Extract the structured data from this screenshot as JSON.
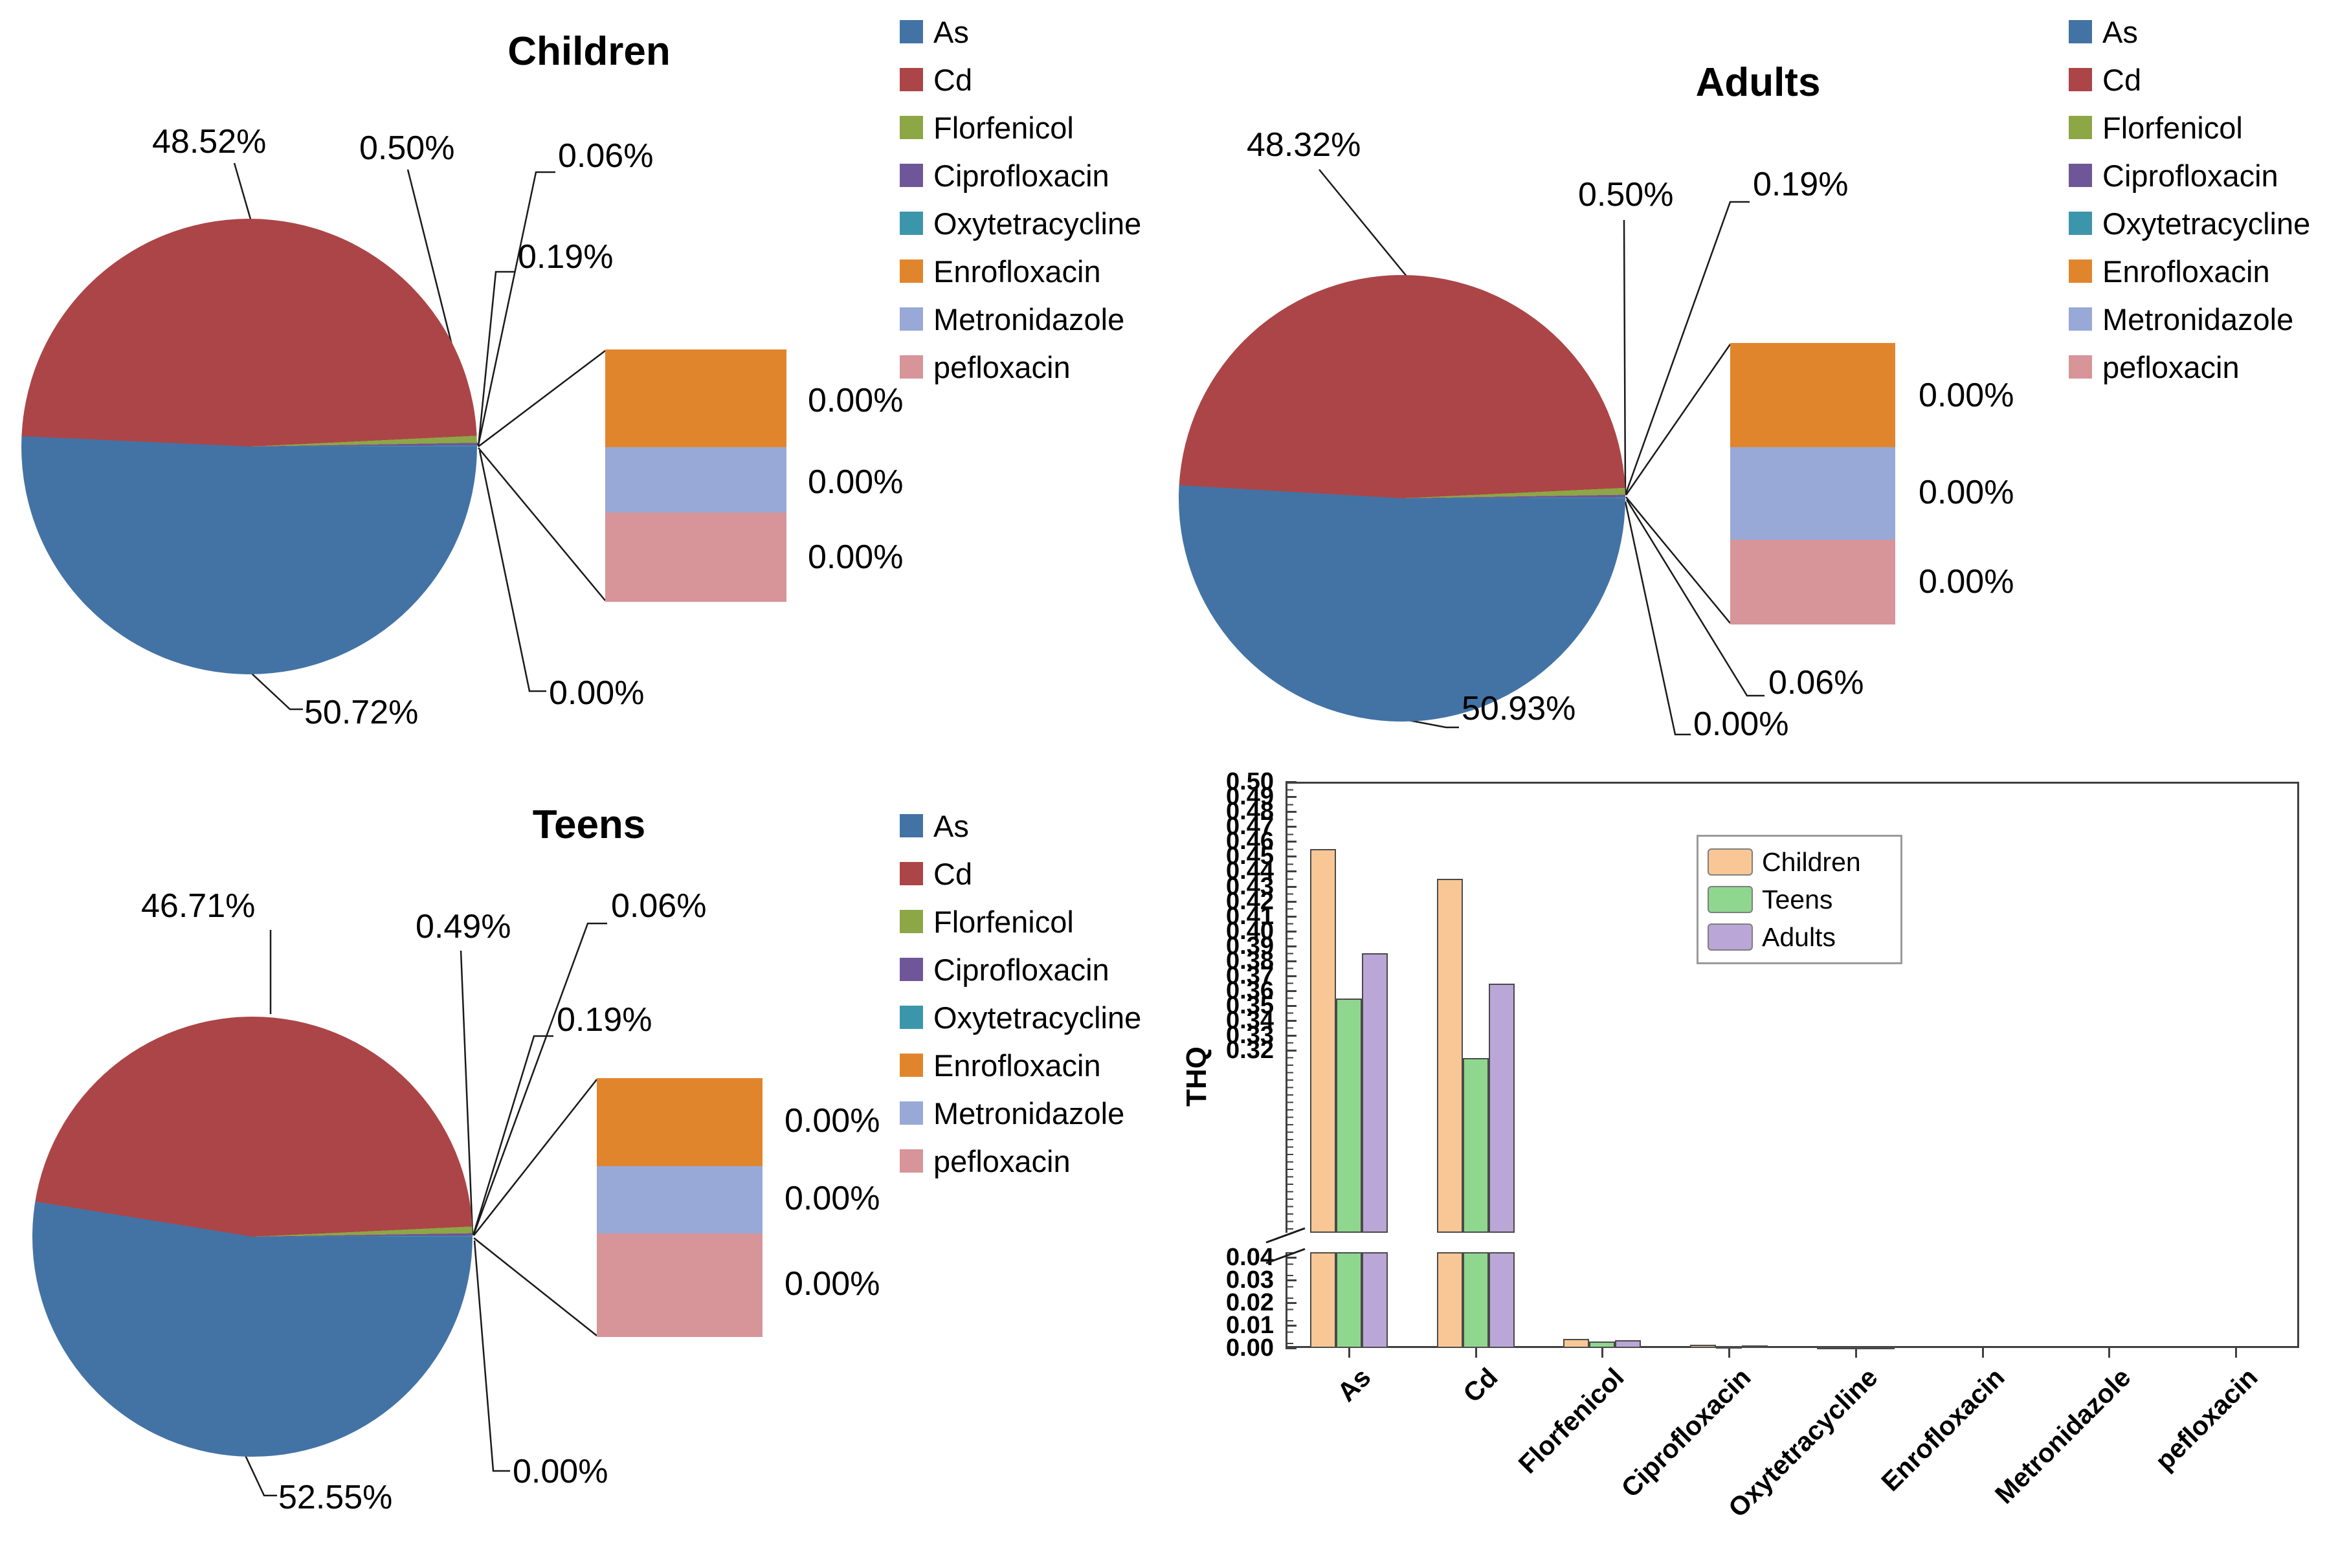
{
  "pie_legend": {
    "labels": [
      "As",
      "Cd",
      "Florfenicol",
      "Ciprofloxacin",
      "Oxytetracycline",
      "Enrofloxacin",
      "Metronidazole",
      "pefloxacin"
    ]
  },
  "pie_colors": {
    "As": "#4373A5",
    "Cd": "#AC4547",
    "Florfenicol": "#8DA646",
    "Ciprofloxacin": "#6F5699",
    "Oxytetracycline": "#3C96AB",
    "Enrofloxacin": "#E1852D",
    "Metronidazole": "#98A9D8",
    "pefloxacin": "#D79499"
  },
  "bar_colors": {
    "Children": "#F9C795",
    "Teens": "#8FD78F",
    "Adults": "#BAA6D7"
  },
  "chart_data": [
    {
      "type": "pie",
      "title": "Children",
      "variant": "bar-of-pie",
      "categories": [
        "As",
        "Cd",
        "Florfenicol",
        "Ciprofloxacin",
        "Oxytetracycline",
        "Enrofloxacin",
        "Metronidazole",
        "pefloxacin"
      ],
      "values": [
        50.72,
        48.52,
        0.5,
        0.19,
        0.06,
        0.0,
        0.0,
        0.0
      ],
      "labels": {
        "As": "50.72%",
        "Cd": "48.52%",
        "Florfenicol": "0.50%",
        "Ciprofloxacin": "0.19%",
        "Oxytetracycline": "0.06%",
        "Enrofloxacin": "0.00%",
        "Metronidazole": "0.00%",
        "pefloxacin": "0.00%",
        "other": "0.00%"
      },
      "breakout": [
        "Enrofloxacin",
        "Metronidazole",
        "pefloxacin"
      ]
    },
    {
      "type": "pie",
      "title": "Adults",
      "variant": "bar-of-pie",
      "categories": [
        "As",
        "Cd",
        "Florfenicol",
        "Ciprofloxacin",
        "Oxytetracycline",
        "Enrofloxacin",
        "Metronidazole",
        "pefloxacin"
      ],
      "values": [
        50.93,
        48.32,
        0.5,
        0.19,
        0.06,
        0.0,
        0.0,
        0.0
      ],
      "labels": {
        "As": "50.93%",
        "Cd": "48.32%",
        "Florfenicol": "0.50%",
        "Ciprofloxacin": "0.19%",
        "Oxytetracycline": "0.06%",
        "Enrofloxacin": "0.00%",
        "Metronidazole": "0.00%",
        "pefloxacin": "0.00%",
        "other": "0.00%"
      },
      "breakout": [
        "Enrofloxacin",
        "Metronidazole",
        "pefloxacin"
      ]
    },
    {
      "type": "pie",
      "title": "Teens",
      "variant": "bar-of-pie",
      "categories": [
        "As",
        "Cd",
        "Florfenicol",
        "Ciprofloxacin",
        "Oxytetracycline",
        "Enrofloxacin",
        "Metronidazole",
        "pefloxacin"
      ],
      "values": [
        52.55,
        46.71,
        0.49,
        0.19,
        0.06,
        0.0,
        0.0,
        0.0
      ],
      "labels": {
        "As": "52.55%",
        "Cd": "46.71%",
        "Florfenicol": "0.49%",
        "Ciprofloxacin": "0.19%",
        "Oxytetracycline": "0.06%",
        "Enrofloxacin": "0.00%",
        "Metronidazole": "0.00%",
        "pefloxacin": "0.00%",
        "other": "0.00%"
      },
      "breakout": [
        "Enrofloxacin",
        "Metronidazole",
        "pefloxacin"
      ]
    },
    {
      "type": "bar",
      "title": "",
      "xlabel": "",
      "ylabel": "THQ",
      "categories": [
        "As",
        "Cd",
        "Florfenicol",
        "Ciprofloxacin",
        "Oxytetracycline",
        "Enrofloxacin",
        "Metronidazole",
        "pefloxacin"
      ],
      "series": [
        {
          "name": "Children",
          "values": [
            0.455,
            0.435,
            0.004,
            0.0015,
            0.0005,
            0.0001,
            0.0001,
            0.0001
          ]
        },
        {
          "name": "Teens",
          "values": [
            0.355,
            0.315,
            0.003,
            0.001,
            0.0003,
            0.0001,
            0.0001,
            0.0001
          ]
        },
        {
          "name": "Adults",
          "values": [
            0.385,
            0.365,
            0.0035,
            0.0012,
            0.0004,
            0.0001,
            0.0001,
            0.0001
          ]
        }
      ],
      "axis_break": {
        "lower_max": 0.045,
        "upper_min": 0.302
      },
      "yticks_upper": [
        "0.50",
        "0.49",
        "0.48",
        "0.47",
        "0.46",
        "0.45",
        "0.44",
        "0.43",
        "0.42",
        "0.41",
        "0.40",
        "0.39",
        "0.38",
        "0.37",
        "0.36",
        "0.35",
        "0.34",
        "0.33",
        "0.32"
      ],
      "yticks_lower": [
        "0.04",
        "0.03",
        "0.02",
        "0.01",
        "0.00"
      ],
      "legend": [
        "Children",
        "Teens",
        "Adults"
      ],
      "legend_position": "inside upper-left-of-center",
      "grid": false
    }
  ]
}
